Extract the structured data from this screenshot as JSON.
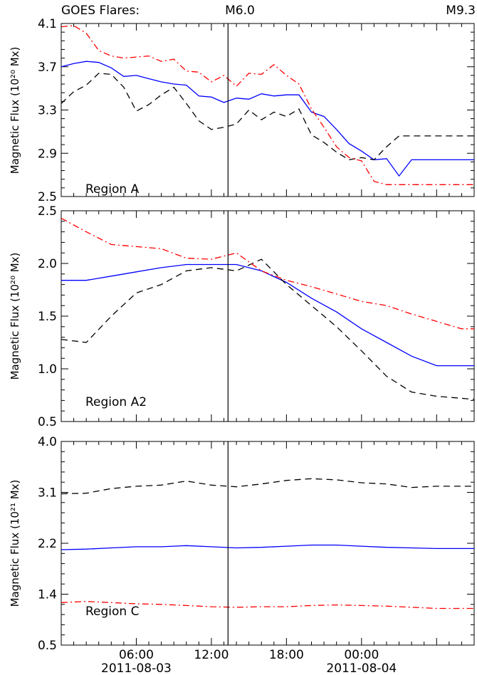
{
  "header": {
    "label": "GOES Flares:",
    "flares": [
      {
        "label": "M6.0",
        "x_hours": 13.33
      },
      {
        "label": "M9.3",
        "x_hours": 33.0
      }
    ]
  },
  "x_axis": {
    "range_hours": [
      0,
      33
    ],
    "tick_labels": [
      {
        "time": "06:00",
        "date": "2011-08-03",
        "x_hours": 6
      },
      {
        "time": "12:00",
        "date": "",
        "x_hours": 12
      },
      {
        "time": "18:00",
        "date": "",
        "x_hours": 18
      },
      {
        "time": "00:00",
        "date": "2011-08-04",
        "x_hours": 24
      }
    ]
  },
  "chart_data": [
    {
      "type": "line",
      "region_label": "Region A",
      "ylabel": "Magnetic Flux (10²⁰ Mx)",
      "ylim": [
        2.5,
        4.1
      ],
      "yticks": [
        "2.5",
        "2.9",
        "3.3",
        "3.7",
        "4.1"
      ],
      "grid": false,
      "x": [
        0,
        1,
        2,
        3,
        4,
        5,
        6,
        7,
        8,
        9,
        10,
        11,
        12,
        13,
        14,
        15,
        16,
        17,
        18,
        19,
        20,
        21,
        22,
        23,
        24,
        25,
        26,
        27,
        28,
        29,
        30,
        31,
        32,
        33
      ],
      "series": [
        {
          "style": "solid",
          "color": "#0000ff",
          "values": [
            3.7,
            3.73,
            3.75,
            3.74,
            3.69,
            3.61,
            3.62,
            3.59,
            3.56,
            3.54,
            3.53,
            3.43,
            3.42,
            3.37,
            3.41,
            3.4,
            3.45,
            3.43,
            3.44,
            3.44,
            3.28,
            3.24,
            3.12,
            2.99,
            2.92,
            2.84,
            2.85,
            2.69,
            2.84,
            2.84,
            2.84,
            2.84,
            2.84,
            2.84
          ]
        },
        {
          "style": "dashed",
          "color": "#000000",
          "values": [
            3.36,
            3.47,
            3.53,
            3.64,
            3.63,
            3.51,
            3.29,
            3.35,
            3.44,
            3.51,
            3.36,
            3.2,
            3.12,
            3.14,
            3.17,
            3.3,
            3.21,
            3.28,
            3.24,
            3.31,
            3.07,
            3.0,
            2.91,
            2.84,
            2.86,
            2.84,
            2.96,
            3.06,
            3.06,
            3.06,
            3.06,
            3.06,
            3.06,
            3.06
          ]
        },
        {
          "style": "dash-dot",
          "color": "#ff0000",
          "values": [
            4.07,
            4.08,
            4.01,
            3.85,
            3.8,
            3.78,
            3.79,
            3.8,
            3.75,
            3.77,
            3.66,
            3.65,
            3.56,
            3.62,
            3.52,
            3.64,
            3.63,
            3.72,
            3.62,
            3.54,
            3.31,
            3.14,
            2.96,
            2.86,
            2.83,
            2.64,
            2.61,
            2.61,
            2.61,
            2.61,
            2.61,
            2.61,
            2.61,
            2.61
          ]
        }
      ]
    },
    {
      "type": "line",
      "region_label": "Region A2",
      "ylabel": "Magnetic Flux (10²⁰ Mx)",
      "ylim": [
        0.5,
        2.5
      ],
      "yticks": [
        "0.5",
        "1.0",
        "1.5",
        "2.0",
        "2.5"
      ],
      "grid": false,
      "x": [
        0,
        2,
        4,
        6,
        8,
        10,
        12,
        14,
        16,
        18,
        20,
        22,
        24,
        26,
        28,
        30,
        32,
        33
      ],
      "series": [
        {
          "style": "solid",
          "color": "#0000ff",
          "values": [
            1.84,
            1.84,
            1.88,
            1.92,
            1.96,
            1.99,
            1.99,
            1.99,
            1.93,
            1.82,
            1.67,
            1.54,
            1.38,
            1.25,
            1.12,
            1.03,
            1.03,
            1.03
          ]
        },
        {
          "style": "dashed",
          "color": "#000000",
          "values": [
            1.28,
            1.25,
            1.5,
            1.72,
            1.8,
            1.93,
            1.96,
            1.93,
            2.04,
            1.8,
            1.6,
            1.4,
            1.17,
            0.93,
            0.78,
            0.74,
            0.72,
            0.71
          ]
        },
        {
          "style": "dash-dot",
          "color": "#ff0000",
          "values": [
            2.43,
            2.3,
            2.18,
            2.16,
            2.14,
            2.05,
            2.04,
            2.1,
            1.93,
            1.84,
            1.78,
            1.71,
            1.64,
            1.6,
            1.52,
            1.45,
            1.38,
            1.38
          ]
        }
      ]
    },
    {
      "type": "line",
      "region_label": "Region C",
      "ylabel": "Magnetic Flux (10²¹ Mx)",
      "ylim": [
        0.5,
        4.0
      ],
      "yticks": [
        "0.5",
        "1.4",
        "2.2",
        "3.1",
        "4.0"
      ],
      "grid": false,
      "x": [
        0,
        2,
        4,
        6,
        8,
        10,
        12,
        14,
        16,
        18,
        20,
        22,
        24,
        26,
        28,
        30,
        32,
        33
      ],
      "series": [
        {
          "style": "solid",
          "color": "#0000ff",
          "values": [
            2.14,
            2.15,
            2.17,
            2.19,
            2.19,
            2.21,
            2.19,
            2.17,
            2.18,
            2.2,
            2.22,
            2.22,
            2.2,
            2.18,
            2.17,
            2.16,
            2.16,
            2.16
          ]
        },
        {
          "style": "dashed",
          "color": "#000000",
          "values": [
            3.1,
            3.11,
            3.19,
            3.23,
            3.25,
            3.32,
            3.25,
            3.22,
            3.27,
            3.33,
            3.36,
            3.34,
            3.29,
            3.27,
            3.21,
            3.23,
            3.23,
            3.23
          ]
        },
        {
          "style": "dash-dot",
          "color": "#ff0000",
          "values": [
            1.23,
            1.25,
            1.23,
            1.21,
            1.2,
            1.18,
            1.16,
            1.15,
            1.16,
            1.16,
            1.18,
            1.19,
            1.18,
            1.17,
            1.15,
            1.13,
            1.13,
            1.13
          ]
        }
      ]
    }
  ]
}
